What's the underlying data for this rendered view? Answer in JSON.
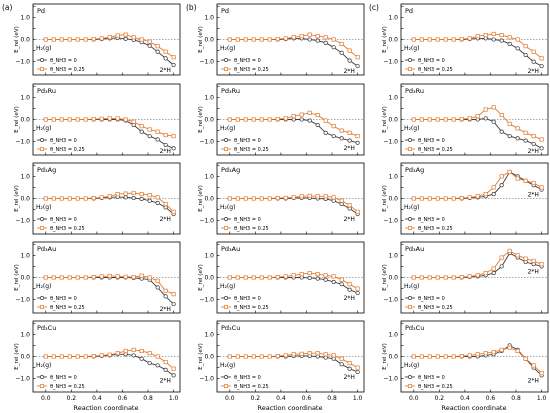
{
  "figure": {
    "column_labels": [
      "(a)",
      "(b)",
      "(c)"
    ],
    "row_labels": [
      "Pd",
      "Pd3Ru",
      "Pd3Ag",
      "Pd3Au",
      "Pd3Cu"
    ],
    "row_labels_display": [
      "Pd",
      "Pd₃Ru",
      "Pd₃Ag",
      "Pd₃Au",
      "Pd₃Cu"
    ],
    "ylabel": "E_rel (eV)",
    "xlabel": "Reaction coordinate",
    "start_annotation": "H₂(g)",
    "end_annotation": "2*H",
    "legend": [
      {
        "label": "θ_NH3 = 0",
        "color": "#3a3a3a",
        "marker": "circle"
      },
      {
        "label": "θ_NH3 = 0.25",
        "color": "#e07b2f",
        "marker": "square"
      }
    ],
    "x_ticks": [
      "0.0",
      "0.2",
      "0.4",
      "0.6",
      "0.8",
      "1.0"
    ],
    "y_ticks": [
      "1.5",
      "1.0",
      "0.5",
      "0.0",
      "-0.5",
      "-1.0"
    ],
    "y_ticklabels_shown": [
      "1.0",
      "0.0",
      "−1.0"
    ],
    "colors": {
      "series0": "#3a3a3a",
      "series1": "#e07b2f",
      "zero_line": "#555555"
    }
  },
  "chart_data": {
    "type": "line",
    "grid": false,
    "xlabel": "Reaction coordinate",
    "ylabel": "E_rel (eV)",
    "xlim": [
      -0.1,
      1.05
    ],
    "ylim": [
      -1.6,
      1.6
    ],
    "x": [
      0.0,
      0.0625,
      0.125,
      0.1875,
      0.25,
      0.3125,
      0.375,
      0.4375,
      0.5,
      0.5625,
      0.625,
      0.6875,
      0.75,
      0.8125,
      0.875,
      0.9375,
      1.0
    ],
    "panels": [
      {
        "column": "(a)",
        "surface": "Pd",
        "series": [
          {
            "name": "θ_NH3 = 0",
            "values": [
              0,
              0,
              0,
              0,
              0,
              0,
              0,
              0.02,
              0.05,
              0.07,
              0.03,
              -0.02,
              -0.12,
              -0.28,
              -0.55,
              -0.85,
              -1.15
            ]
          },
          {
            "name": "θ_NH3 = 0.25",
            "values": [
              0,
              0,
              0,
              0,
              0,
              0,
              0.02,
              0.05,
              0.1,
              0.18,
              0.22,
              0.1,
              0.0,
              -0.1,
              -0.3,
              -0.55,
              -0.8
            ]
          }
        ]
      },
      {
        "column": "(a)",
        "surface": "Pd3Ru",
        "series": [
          {
            "name": "θ_NH3 = 0",
            "values": [
              0,
              0,
              0,
              0,
              0,
              0,
              0,
              0,
              0,
              0,
              -0.05,
              -0.25,
              -0.55,
              -0.75,
              -0.9,
              -1.15,
              -1.3
            ]
          },
          {
            "name": "θ_NH3 = 0.25",
            "values": [
              0,
              0,
              0,
              0,
              0,
              0,
              0.02,
              0.03,
              0.05,
              0.05,
              0.0,
              -0.1,
              -0.3,
              -0.45,
              -0.55,
              -0.7,
              -0.75
            ]
          }
        ]
      },
      {
        "column": "(a)",
        "surface": "Pd3Ag",
        "series": [
          {
            "name": "θ_NH3 = 0",
            "values": [
              0,
              0,
              0,
              0,
              0,
              0,
              0,
              0.02,
              0.05,
              0.07,
              0.05,
              0.02,
              -0.02,
              -0.1,
              -0.2,
              -0.4,
              -0.7
            ]
          },
          {
            "name": "θ_NH3 = 0.25",
            "values": [
              0,
              0,
              0,
              0,
              0,
              0,
              0.02,
              0.05,
              0.1,
              0.2,
              0.22,
              0.25,
              0.2,
              0.15,
              0.05,
              -0.25,
              -0.6
            ]
          }
        ]
      },
      {
        "column": "(a)",
        "surface": "Pd3Au",
        "series": [
          {
            "name": "θ_NH3 = 0",
            "values": [
              0,
              0,
              0,
              0,
              0,
              0,
              0,
              0,
              0,
              0,
              0,
              -0.02,
              -0.05,
              -0.1,
              -0.45,
              -0.85,
              -1.2
            ]
          },
          {
            "name": "θ_NH3 = 0.25",
            "values": [
              0,
              0,
              0,
              0,
              0,
              0,
              0.02,
              0.05,
              0.07,
              0.05,
              0.03,
              0.02,
              0.08,
              0.0,
              -0.15,
              -0.6,
              -0.75
            ]
          }
        ]
      },
      {
        "column": "(a)",
        "surface": "Pd3Cu",
        "series": [
          {
            "name": "θ_NH3 = 0",
            "values": [
              0,
              0,
              0,
              0,
              0,
              0,
              0,
              0.02,
              0.05,
              0.1,
              0.1,
              0.05,
              -0.1,
              -0.3,
              -0.4,
              -0.6,
              -0.85
            ]
          },
          {
            "name": "θ_NH3 = 0.25",
            "values": [
              0,
              0,
              0,
              0,
              0,
              0,
              0.02,
              0.05,
              0.08,
              0.15,
              0.25,
              0.3,
              0.25,
              0.15,
              0.0,
              -0.25,
              -0.55
            ]
          }
        ]
      },
      {
        "column": "(b)",
        "surface": "Pd",
        "series": [
          {
            "name": "θ_NH3 = 0",
            "values": [
              0,
              0,
              0,
              0,
              0,
              0,
              0,
              0.02,
              0.05,
              0.05,
              0.0,
              -0.05,
              -0.15,
              -0.35,
              -0.6,
              -0.95,
              -1.2
            ]
          },
          {
            "name": "θ_NH3 = 0.25",
            "values": [
              0,
              0,
              0,
              0,
              0,
              0,
              0.02,
              0.05,
              0.1,
              0.15,
              0.22,
              0.15,
              0.1,
              0.0,
              -0.2,
              -0.5,
              -0.8
            ]
          }
        ]
      },
      {
        "column": "(b)",
        "surface": "Pd3Ru",
        "series": [
          {
            "name": "θ_NH3 = 0",
            "values": [
              0,
              0,
              0,
              0,
              0,
              0,
              0,
              0,
              0,
              0,
              -0.05,
              -0.25,
              -0.6,
              -0.75,
              -0.85,
              -0.95,
              -1.05
            ]
          },
          {
            "name": "θ_NH3 = 0.25",
            "values": [
              0,
              0,
              0,
              0,
              0,
              0,
              0.02,
              0.05,
              0.15,
              0.22,
              0.3,
              0.2,
              -0.05,
              -0.3,
              -0.5,
              -0.6,
              -0.75
            ]
          }
        ]
      },
      {
        "column": "(b)",
        "surface": "Pd3Ag",
        "series": [
          {
            "name": "θ_NH3 = 0",
            "values": [
              0,
              0,
              0,
              0,
              0,
              0,
              0,
              0,
              0.02,
              0.03,
              0.02,
              0.0,
              -0.02,
              -0.1,
              -0.25,
              -0.45,
              -0.7
            ]
          },
          {
            "name": "θ_NH3 = 0.25",
            "values": [
              0,
              0,
              0,
              0,
              0,
              0,
              0.02,
              0.03,
              0.05,
              0.1,
              0.12,
              0.1,
              0.1,
              0.05,
              -0.1,
              -0.3,
              -0.6
            ]
          }
        ]
      },
      {
        "column": "(b)",
        "surface": "Pd3Au",
        "series": [
          {
            "name": "θ_NH3 = 0",
            "values": [
              0,
              0,
              0,
              0,
              0,
              0,
              0,
              0,
              0,
              0,
              -0.02,
              -0.05,
              -0.1,
              -0.2,
              -0.3,
              -0.55,
              -0.7
            ]
          },
          {
            "name": "θ_NH3 = 0.25",
            "values": [
              0,
              0,
              0,
              0,
              0,
              0,
              0.02,
              0.05,
              0.1,
              0.15,
              0.2,
              0.15,
              0.1,
              0.05,
              -0.1,
              -0.3,
              -0.5
            ]
          }
        ]
      },
      {
        "column": "(b)",
        "surface": "Pd3Cu",
        "series": [
          {
            "name": "θ_NH3 = 0",
            "values": [
              0,
              0,
              0,
              0,
              0,
              0,
              0,
              0,
              0.02,
              0.03,
              0.02,
              0.0,
              -0.05,
              -0.1,
              -0.35,
              -0.55,
              -0.7
            ]
          },
          {
            "name": "θ_NH3 = 0.25",
            "values": [
              0,
              0,
              0,
              0,
              0,
              0,
              0.02,
              0.05,
              0.1,
              0.12,
              0.15,
              0.15,
              0.1,
              0.05,
              -0.1,
              -0.3,
              -0.5
            ]
          }
        ]
      },
      {
        "column": "(c)",
        "surface": "Pd",
        "series": [
          {
            "name": "θ_NH3 = 0",
            "values": [
              0,
              0,
              0,
              0,
              0,
              0,
              0,
              0.02,
              0.05,
              0.05,
              0.0,
              -0.05,
              -0.2,
              -0.4,
              -0.7,
              -1.0,
              -1.2
            ]
          },
          {
            "name": "θ_NH3 = 0.25",
            "values": [
              0,
              0,
              0,
              0,
              0,
              0,
              0.02,
              0.05,
              0.15,
              0.2,
              0.25,
              0.2,
              0.1,
              0.0,
              -0.3,
              -0.55,
              -0.85
            ]
          }
        ]
      },
      {
        "column": "(c)",
        "surface": "Pd3Ru",
        "series": [
          {
            "name": "θ_NH3 = 0",
            "values": [
              0,
              0,
              0,
              0,
              0,
              0,
              0,
              0,
              0,
              0.05,
              -0.1,
              -0.55,
              -0.75,
              -0.85,
              -0.95,
              -1.1,
              -1.3
            ]
          },
          {
            "name": "θ_NH3 = 0.25",
            "values": [
              0,
              0,
              0,
              0,
              0,
              0,
              0.02,
              0.05,
              0.15,
              0.45,
              0.55,
              0.2,
              -0.2,
              -0.4,
              -0.6,
              -0.75,
              -0.9
            ]
          }
        ]
      },
      {
        "column": "(c)",
        "surface": "Pd3Ag",
        "series": [
          {
            "name": "θ_NH3 = 0",
            "values": [
              0,
              0,
              0,
              0,
              0,
              0,
              0,
              0.02,
              0.05,
              0.1,
              0.2,
              0.6,
              1.2,
              1.0,
              0.8,
              0.6,
              0.4
            ]
          },
          {
            "name": "θ_NH3 = 0.25",
            "values": [
              0,
              0,
              0,
              0,
              0,
              0,
              0.02,
              0.05,
              0.1,
              0.2,
              0.5,
              1.0,
              1.2,
              0.9,
              0.8,
              0.7,
              0.5
            ]
          }
        ]
      },
      {
        "column": "(c)",
        "surface": "Pd3Au",
        "series": [
          {
            "name": "θ_NH3 = 0",
            "values": [
              0,
              0,
              0,
              0,
              0,
              0,
              0,
              0.02,
              0.05,
              0.1,
              0.2,
              0.5,
              1.1,
              0.9,
              0.7,
              0.6,
              0.5
            ]
          },
          {
            "name": "θ_NH3 = 0.25",
            "values": [
              0,
              0,
              0,
              0,
              0,
              0,
              0.02,
              0.05,
              0.1,
              0.2,
              0.4,
              0.9,
              1.2,
              1.0,
              0.85,
              0.75,
              0.6
            ]
          }
        ]
      },
      {
        "column": "(c)",
        "surface": "Pd3Cu",
        "series": [
          {
            "name": "θ_NH3 = 0",
            "values": [
              0,
              0,
              0,
              0,
              0,
              0,
              0,
              0,
              0,
              0.05,
              0.1,
              0.25,
              0.5,
              0.3,
              -0.1,
              -0.5,
              -0.85
            ]
          },
          {
            "name": "θ_NH3 = 0.25",
            "values": [
              0,
              0,
              0,
              0,
              0,
              0,
              0.02,
              0.05,
              0.1,
              0.15,
              0.2,
              0.3,
              0.4,
              0.25,
              -0.1,
              -0.4,
              -0.75
            ]
          }
        ]
      }
    ]
  }
}
